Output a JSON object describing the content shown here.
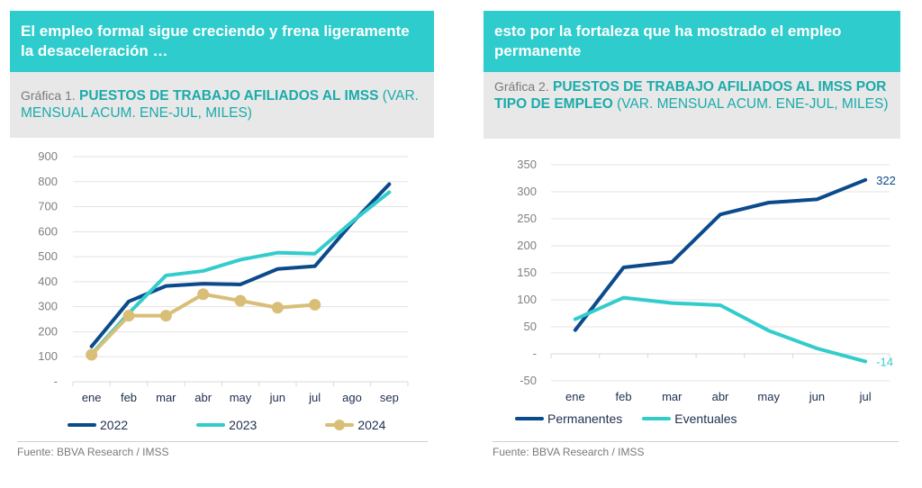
{
  "colors": {
    "header_bg": "#2ECCCC",
    "subhead_bg": "#E8E8E8",
    "title_teal": "#1AABAB",
    "navy": "#0B4A8B",
    "turquoise": "#33CCCC",
    "gold": "#D9BE78"
  },
  "panel1": {
    "headline": "El empleo formal sigue creciendo y frena ligeramente la desaceleración …",
    "chart_number": "Gráfica 1.",
    "chart_title": "PUESTOS DE TRABAJO AFILIADOS AL IMSS",
    "chart_units": "(VAR. MENSUAL ACUM. ENE-JUL, MILES)",
    "source": "Fuente: BBVA Research / IMSS"
  },
  "panel2": {
    "headline": "esto por la fortaleza que ha mostrado el empleo permanente",
    "chart_number": "Gráfica 2.",
    "chart_title": "PUESTOS DE TRABAJO AFILIADOS AL IMSS POR TIPO DE EMPLEO",
    "chart_units": "(VAR. MENSUAL ACUM. ENE-JUL, MILES)",
    "source": "Fuente: BBVA Research / IMSS"
  },
  "chart_data": [
    {
      "type": "line",
      "title": "PUESTOS DE TRABAJO AFILIADOS AL IMSS (VAR. MENSUAL ACUM. ENE-JUL, MILES)",
      "xlabel": "",
      "ylabel": "",
      "categories": [
        "ene",
        "feb",
        "mar",
        "abr",
        "may",
        "jun",
        "jul",
        "ago",
        "sep"
      ],
      "yticks": [
        0,
        100,
        200,
        300,
        400,
        500,
        600,
        700,
        800,
        900
      ],
      "ytick_labels": [
        "-",
        "100",
        "200",
        "300",
        "400",
        "500",
        "600",
        "700",
        "800",
        "900"
      ],
      "ylim": [
        0,
        900
      ],
      "grid": true,
      "legend": "bottom",
      "series": [
        {
          "name": "2022",
          "color": "#0B4A8B",
          "markers": false,
          "values": [
            141,
            321,
            383,
            392,
            389,
            451,
            462,
            635,
            790
          ]
        },
        {
          "name": "2023",
          "color": "#33CCCC",
          "markers": false,
          "values": [
            110,
            274,
            425,
            443,
            488,
            516,
            512,
            640,
            758
          ]
        },
        {
          "name": "2024",
          "color": "#D9BE78",
          "markers": true,
          "values": [
            108,
            264,
            264,
            350,
            324,
            296,
            308,
            null,
            null
          ]
        }
      ]
    },
    {
      "type": "line",
      "title": "PUESTOS DE TRABAJO AFILIADOS AL IMSS POR TIPO DE EMPLEO (VAR. MENSUAL ACUM. ENE-JUL, MILES)",
      "xlabel": "",
      "ylabel": "",
      "categories": [
        "ene",
        "feb",
        "mar",
        "abr",
        "may",
        "jun",
        "jul"
      ],
      "yticks": [
        -50,
        0,
        50,
        100,
        150,
        200,
        250,
        300,
        350
      ],
      "ytick_labels": [
        "-50",
        "-",
        "50",
        "100",
        "150",
        "200",
        "250",
        "300",
        "350"
      ],
      "ylim": [
        -50,
        350
      ],
      "grid": true,
      "legend": "bottom",
      "series": [
        {
          "name": "Permanentes",
          "color": "#0B4A8B",
          "values": [
            44,
            160,
            170,
            258,
            280,
            286,
            322
          ],
          "end_label": "322"
        },
        {
          "name": "Eventuales",
          "color": "#33CCCC",
          "values": [
            64,
            104,
            94,
            90,
            43,
            10,
            -14
          ],
          "end_label": "-14"
        }
      ]
    }
  ]
}
